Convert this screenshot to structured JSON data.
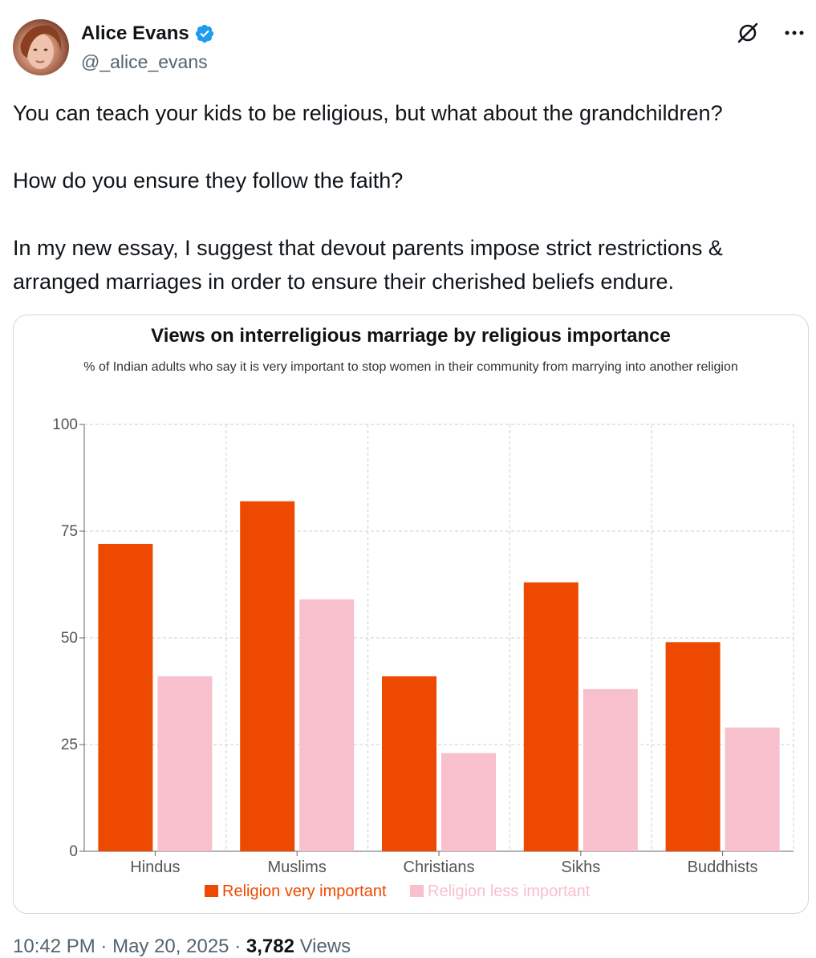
{
  "author": {
    "display_name": "Alice Evans",
    "handle": "@_alice_evans",
    "verified": true
  },
  "header_icons": [
    "grok-icon",
    "more-icon"
  ],
  "tweet": {
    "paragraph_1": "You can teach your kids to be religious, but what about the grandchildren?",
    "paragraph_2": "How do you ensure they follow the faith?",
    "paragraph_3": "In my new essay, I suggest that devout parents impose strict restrictions & arranged marriages in order to ensure their cherished beliefs endure."
  },
  "meta": {
    "time": "10:42 PM",
    "date": "May 20, 2025",
    "views_count": "3,782",
    "views_label": "Views"
  },
  "chart_data": {
    "type": "bar",
    "title": "Views on interreligious marriage by religious importance",
    "subtitle": "% of Indian adults who say it is very important to stop women in their community from marrying into another religion",
    "categories": [
      "Hindus",
      "Muslims",
      "Christians",
      "Sikhs",
      "Buddhists"
    ],
    "series": [
      {
        "name": "Religion very important",
        "values": [
          72,
          82,
          41,
          63,
          49
        ],
        "color": "#ee4900"
      },
      {
        "name": "Religion less important",
        "values": [
          41,
          59,
          23,
          38,
          29
        ],
        "color": "#f7c0cc"
      }
    ],
    "ylim": [
      0,
      100
    ],
    "yticks": [
      0,
      25,
      50,
      75,
      100
    ],
    "grid": true,
    "legend": "bottom"
  },
  "colors": {
    "accent": "#1d9bf0",
    "text": "#0f1419",
    "secondary": "#536471"
  }
}
